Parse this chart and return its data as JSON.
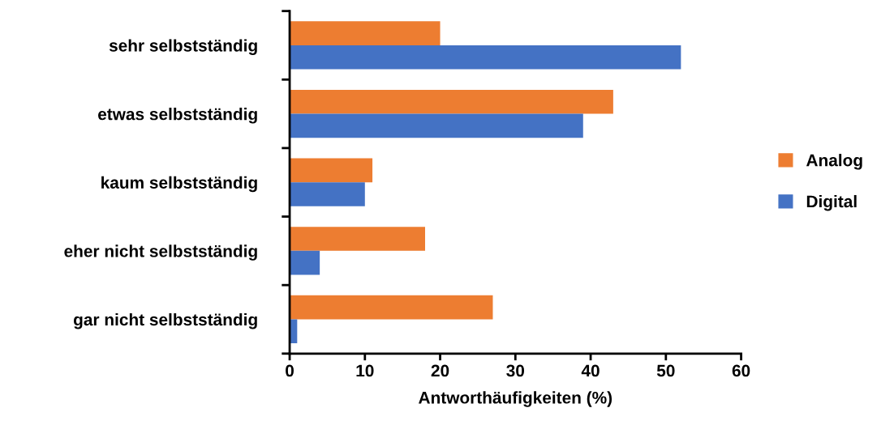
{
  "chart_data": {
    "type": "bar",
    "orientation": "horizontal",
    "xlabel": "Antworthäufigkeiten (%)",
    "categories": [
      "sehr selbstständig",
      "etwas selbstständig",
      "kaum selbstständig",
      "eher nicht selbstständig",
      "gar nicht selbstständig"
    ],
    "series": [
      {
        "name": "Analog",
        "color": "#ed7d31",
        "values": [
          20,
          43,
          11,
          18,
          27
        ]
      },
      {
        "name": "Digital",
        "color": "#4472c4",
        "values": [
          52,
          39,
          10,
          4,
          1
        ]
      }
    ],
    "xlim": [
      0,
      60
    ],
    "xticks": [
      0,
      10,
      20,
      30,
      40,
      50,
      60
    ],
    "grid": false,
    "legend": "right"
  }
}
